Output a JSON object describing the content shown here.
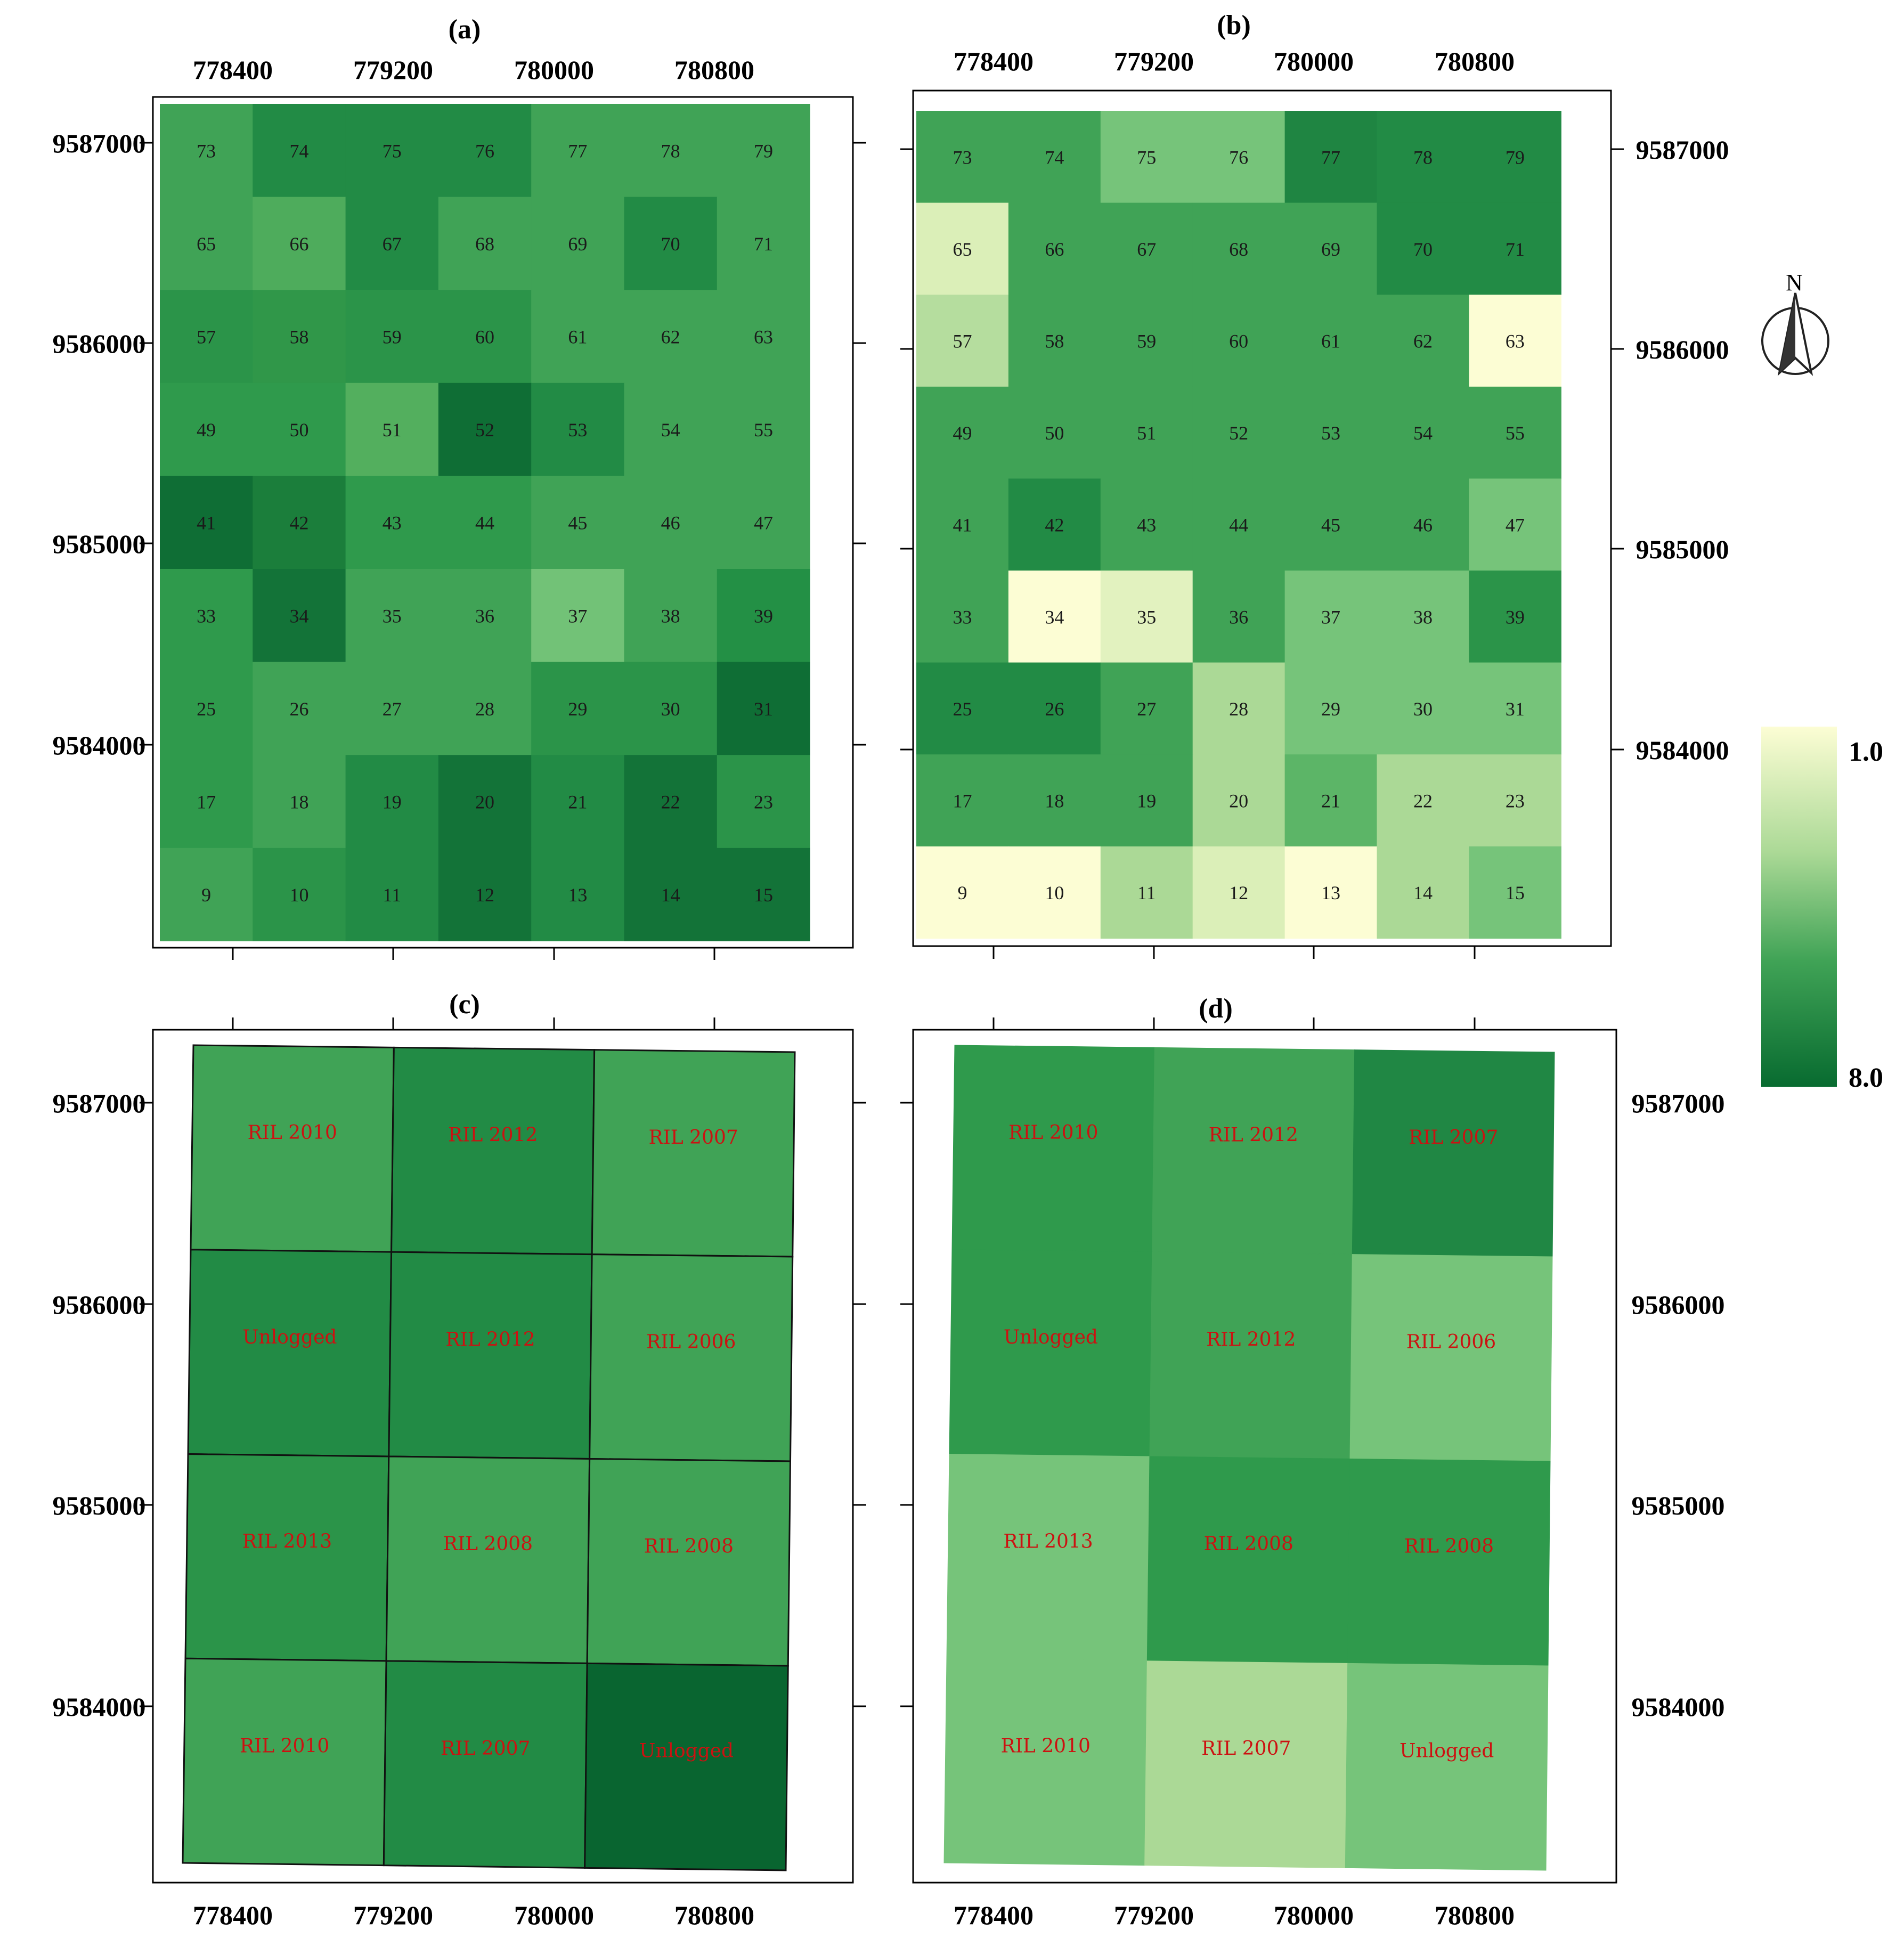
{
  "figure": {
    "panel_titles": [
      "(a)",
      "(b)",
      "(c)",
      "(d)"
    ],
    "x_ticks": [
      "778400",
      "779200",
      "780000",
      "780800"
    ],
    "y_ticks": [
      "9587000",
      "9586000",
      "9585000",
      "9584000"
    ],
    "north_label": "N",
    "legend": {
      "max_label": "1.0",
      "min_label": "8.0",
      "light_color": "#fcfdd4",
      "dark_color": "#086b30"
    }
  },
  "grid": {
    "rows": [
      [
        73,
        74,
        75,
        76,
        77,
        78,
        79
      ],
      [
        65,
        66,
        67,
        68,
        69,
        70,
        71
      ],
      [
        57,
        58,
        59,
        60,
        61,
        62,
        63
      ],
      [
        49,
        50,
        51,
        52,
        53,
        54,
        55
      ],
      [
        41,
        42,
        43,
        44,
        45,
        46,
        47
      ],
      [
        33,
        34,
        35,
        36,
        37,
        38,
        39
      ],
      [
        25,
        26,
        27,
        28,
        29,
        30,
        31
      ],
      [
        17,
        18,
        19,
        20,
        21,
        22,
        23
      ],
      [
        9,
        10,
        11,
        12,
        13,
        14,
        15
      ]
    ],
    "panel_a_colors": [
      [
        "#40a356",
        "#228b45",
        "#228b45",
        "#228b45",
        "#40a356",
        "#40a356",
        "#40a356"
      ],
      [
        "#40a356",
        "#4eac5c",
        "#228b45",
        "#40a356",
        "#40a356",
        "#228b45",
        "#40a356"
      ],
      [
        "#2b9449",
        "#309749",
        "#2b9449",
        "#2b9449",
        "#40a356",
        "#40a356",
        "#40a356"
      ],
      [
        "#2f9a4c",
        "#2f9a4c",
        "#53af5e",
        "#0f6e35",
        "#228b45",
        "#40a356",
        "#40a356"
      ],
      [
        "#0f6e35",
        "#1b7e3b",
        "#2f9a4c",
        "#2f9a4c",
        "#40a356",
        "#40a356",
        "#40a356"
      ],
      [
        "#2f9a4c",
        "#137338",
        "#40a356",
        "#40a356",
        "#72c277",
        "#40a356",
        "#239045"
      ],
      [
        "#2f9a4c",
        "#40a356",
        "#40a356",
        "#40a356",
        "#2b9449",
        "#2b9449",
        "#0f6e35"
      ],
      [
        "#2f9a4c",
        "#40a356",
        "#228b45",
        "#137338",
        "#228b45",
        "#137338",
        "#2b9449"
      ],
      [
        "#40a356",
        "#2b9449",
        "#228b45",
        "#137338",
        "#228b45",
        "#137338",
        "#137338"
      ]
    ],
    "panel_b_colors": [
      [
        "#40a356",
        "#40a356",
        "#76c47a",
        "#76c47a",
        "#1f8542",
        "#228b45",
        "#228b45"
      ],
      [
        "#dbefb8",
        "#40a356",
        "#40a356",
        "#40a356",
        "#40a356",
        "#228b45",
        "#228b45"
      ],
      [
        "#b5dd9e",
        "#40a356",
        "#40a356",
        "#40a356",
        "#40a356",
        "#40a356",
        "#fcfdd4"
      ],
      [
        "#40a356",
        "#40a356",
        "#40a356",
        "#40a356",
        "#40a356",
        "#40a356",
        "#40a356"
      ],
      [
        "#40a356",
        "#228b45",
        "#40a356",
        "#40a356",
        "#40a356",
        "#40a356",
        "#76c47a"
      ],
      [
        "#40a356",
        "#fcfdd4",
        "#e2f2bf",
        "#40a356",
        "#76c47a",
        "#76c47a",
        "#2b9449"
      ],
      [
        "#228b45",
        "#228b45",
        "#40a356",
        "#abd996",
        "#76c47a",
        "#76c47a",
        "#76c47a"
      ],
      [
        "#40a356",
        "#40a356",
        "#40a356",
        "#abd996",
        "#5cb567",
        "#abd996",
        "#abd996"
      ],
      [
        "#fcfdd4",
        "#fcfdd4",
        "#abd996",
        "#dbefb8",
        "#fcfdd4",
        "#abd996",
        "#76c47a"
      ]
    ]
  },
  "blocks": {
    "labels": [
      [
        "RIL 2010",
        "RIL 2012",
        "RIL 2007"
      ],
      [
        "Unlogged",
        "RIL 2012",
        "RIL 2006"
      ],
      [
        "RIL 2013",
        "RIL 2008",
        "RIL 2008"
      ],
      [
        "RIL 2010",
        "RIL 2007",
        "Unlogged"
      ]
    ],
    "panel_c_colors": [
      [
        "#40a356",
        "#228b45",
        "#40a356"
      ],
      [
        "#228b45",
        "#228b45",
        "#40a356"
      ],
      [
        "#2b9449",
        "#40a356",
        "#40a356"
      ],
      [
        "#40a356",
        "#228b45",
        "#096530"
      ]
    ],
    "panel_d_colors": [
      [
        "#2f9a4c",
        "#40a356",
        "#208744"
      ],
      [
        "#2f9a4c",
        "#40a356",
        "#76c47a"
      ],
      [
        "#76c47a",
        "#2f9a4c",
        "#2f9a4c"
      ],
      [
        "#76c47a",
        "#abd996",
        "#76c47a"
      ]
    ],
    "label_color": "#cc1111"
  }
}
